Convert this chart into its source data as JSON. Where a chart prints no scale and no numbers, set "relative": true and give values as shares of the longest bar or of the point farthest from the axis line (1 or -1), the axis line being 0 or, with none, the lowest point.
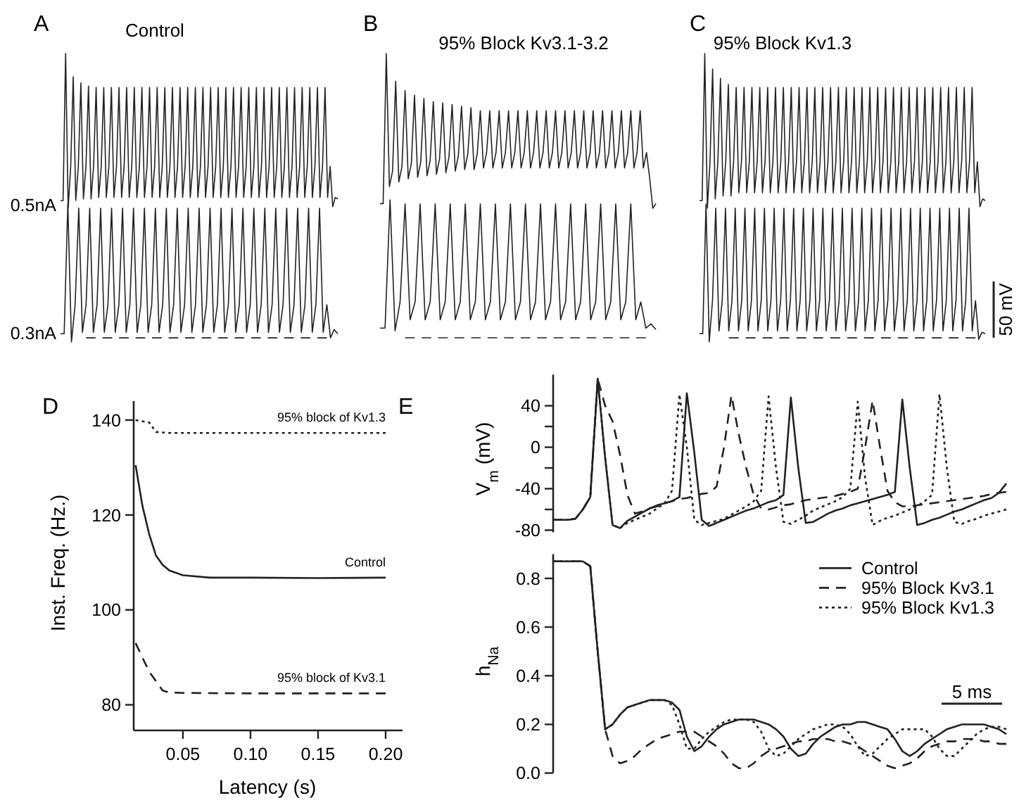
{
  "chart_data": [
    {
      "type": "line",
      "relative": true,
      "title": "Control",
      "ylabel": "0.5nA",
      "annotations": [
        "A"
      ],
      "categories": [
        null,
        null,
        null,
        null,
        null,
        null,
        null,
        null,
        null,
        null,
        null,
        null,
        null,
        null,
        null,
        null,
        null,
        null,
        null,
        null,
        null,
        null,
        null,
        null,
        null,
        null,
        null,
        null,
        null,
        null,
        null,
        null,
        null,
        null,
        null,
        null,
        null,
        null,
        null,
        null,
        null,
        null,
        null,
        null,
        null,
        null,
        null,
        null,
        null,
        null,
        null,
        null,
        null,
        null,
        null,
        null,
        null,
        null,
        null,
        null,
        null,
        null,
        null,
        null,
        null,
        null,
        null,
        null,
        null,
        null,
        null,
        null,
        null,
        null,
        null,
        null,
        null,
        null,
        null,
        null,
        null,
        null,
        null,
        null,
        null,
        null,
        null,
        null,
        null,
        null,
        null,
        null,
        null,
        null,
        null,
        null,
        null,
        null,
        null,
        null,
        null,
        null,
        null,
        null,
        null,
        null,
        null,
        null,
        null,
        null
      ],
      "series": [
        {
          "color": "#222222",
          "values": [
            0.05,
            0.05,
            1,
            0,
            0.27,
            0.85,
            0.05,
            0.27,
            0.81,
            0.06,
            0.27,
            0.79,
            0.06,
            0.27,
            0.78,
            0.07,
            0.27,
            0.78,
            0.07,
            0.27,
            0.78,
            0.07,
            0.27,
            0.78,
            0.07,
            0.27,
            0.78,
            0.07,
            0.27,
            0.78,
            0.07,
            0.27,
            0.78,
            0.07,
            0.27,
            0.78,
            0.07,
            0.27,
            0.78,
            0.07,
            0.27,
            0.78,
            0.07,
            0.27,
            0.78,
            0.07,
            0.27,
            0.78,
            0.07,
            0.27,
            0.78,
            0.07,
            0.27,
            0.78,
            0.07,
            0.27,
            0.78,
            0.07,
            0.27,
            0.78,
            0.07,
            0.27,
            0.78,
            0.07,
            0.27,
            0.78,
            0.07,
            0.27,
            0.78,
            0.07,
            0.27,
            0.78,
            0.07,
            0.27,
            0.78,
            0.07,
            0.27,
            0.78,
            0.07,
            0.27,
            0.78,
            0.07,
            0.27,
            0.78,
            0.07,
            0.27,
            0.78,
            0.07,
            0.27,
            0.78,
            0.07,
            0.27,
            0.78,
            0.07,
            0.27,
            0.78,
            0.07,
            0.27,
            0.78,
            0.07,
            0.27,
            0.78,
            0.07,
            0.27,
            0.78,
            0.07,
            0.27,
            0.01,
            0.07,
            0.06
          ]
        }
      ]
    },
    {
      "type": "line",
      "relative": true,
      "ylabel": "0.3nA",
      "categories": [
        null,
        null,
        null,
        null,
        null,
        null,
        null,
        null,
        null,
        null,
        null,
        null,
        null,
        null,
        null,
        null,
        null,
        null,
        null,
        null,
        null,
        null,
        null,
        null,
        null,
        null,
        null,
        null,
        null,
        null,
        null,
        null,
        null,
        null,
        null,
        null,
        null,
        null,
        null,
        null,
        null,
        null,
        null,
        null,
        null,
        null,
        null,
        null,
        null,
        null,
        null,
        null,
        null,
        null,
        null,
        null,
        null,
        null,
        null,
        null,
        null,
        null,
        null,
        null,
        null,
        null,
        null,
        null,
        null,
        null,
        null,
        null,
        null,
        null,
        null,
        null,
        null
      ],
      "series": [
        {
          "color": "#222222",
          "values": [
            0.06,
            0.06,
            1,
            0,
            0.27,
            0.97,
            0.07,
            0.27,
            0.97,
            0.07,
            0.27,
            0.97,
            0.07,
            0.27,
            0.97,
            0.07,
            0.27,
            0.97,
            0.07,
            0.27,
            0.97,
            0.07,
            0.27,
            0.97,
            0.07,
            0.27,
            0.97,
            0.07,
            0.27,
            0.97,
            0.07,
            0.27,
            0.97,
            0.07,
            0.27,
            0.97,
            0.07,
            0.27,
            0.97,
            0.07,
            0.27,
            0.97,
            0.07,
            0.27,
            0.97,
            0.07,
            0.27,
            0.97,
            0.07,
            0.27,
            0.97,
            0.07,
            0.27,
            0.97,
            0.07,
            0.27,
            0.97,
            0.07,
            0.27,
            0.97,
            0.07,
            0.27,
            0.97,
            0.07,
            0.27,
            0.97,
            0.07,
            0.27,
            0.97,
            0.07,
            0.27,
            0.97,
            0.07,
            0.27,
            0.03,
            0.09,
            0.06
          ]
        },
        {
          "color": "#222222",
          "line_style": "dashed",
          "values": [
            null,
            null,
            null,
            null,
            null,
            null,
            null,
            0.03,
            0.03,
            0.03,
            0.03,
            0.03,
            0.03,
            0.03,
            0.03,
            0.03,
            0.03,
            0.03,
            0.03,
            0.03,
            0.03,
            0.03,
            0.03,
            0.03,
            0.03,
            0.03,
            0.03,
            0.03,
            0.03,
            0.03,
            0.03,
            0.03,
            0.03,
            0.03,
            0.03,
            0.03,
            0.03,
            0.03,
            0.03,
            0.03,
            0.03,
            0.03,
            0.03,
            0.03,
            0.03,
            0.03,
            0.03,
            0.03,
            0.03,
            0.03,
            0.03,
            0.03,
            0.03,
            0.03,
            0.03,
            0.03,
            0.03,
            0.03,
            0.03,
            0.03,
            0.03,
            0.03,
            0.03,
            0.03,
            0.03,
            0.03,
            0.03,
            0.03,
            0.03,
            0.03,
            0.03,
            0.03,
            0.03,
            0.03,
            null,
            null,
            null
          ]
        }
      ]
    },
    {
      "type": "line",
      "relative": true,
      "title": "95% Block Kv3.1-3.2",
      "annotations": [
        "B"
      ],
      "categories": [
        null,
        null,
        null,
        null,
        null,
        null,
        null,
        null,
        null,
        null,
        null,
        null,
        null,
        null,
        null,
        null,
        null,
        null,
        null,
        null,
        null,
        null,
        null,
        null,
        null,
        null,
        null,
        null,
        null,
        null,
        null,
        null,
        null,
        null,
        null,
        null,
        null,
        null,
        null,
        null,
        null,
        null,
        null,
        null,
        null,
        null,
        null,
        null,
        null,
        null,
        null,
        null,
        null,
        null,
        null,
        null,
        null,
        null,
        null,
        null,
        null,
        null,
        null,
        null,
        null,
        null,
        null,
        null,
        null,
        null,
        null,
        null,
        null,
        null,
        null,
        null,
        null,
        null,
        null,
        null,
        null,
        null,
        null,
        null,
        null,
        null,
        null,
        null,
        null
      ],
      "series": [
        {
          "color": "#222222",
          "values": [
            0.03,
            0.03,
            1,
            0.14,
            0.24,
            0.82,
            0.17,
            0.27,
            0.76,
            0.19,
            0.29,
            0.73,
            0.2,
            0.3,
            0.71,
            0.21,
            0.31,
            0.69,
            0.22,
            0.32,
            0.68,
            0.23,
            0.33,
            0.67,
            0.24,
            0.34,
            0.66,
            0.25,
            0.35,
            0.65,
            0.25,
            0.35,
            0.63,
            0.26,
            0.36,
            0.63,
            0.26,
            0.36,
            0.63,
            0.26,
            0.36,
            0.63,
            0.26,
            0.36,
            0.63,
            0.26,
            0.36,
            0.63,
            0.26,
            0.36,
            0.63,
            0.26,
            0.36,
            0.63,
            0.26,
            0.36,
            0.63,
            0.26,
            0.36,
            0.63,
            0.26,
            0.36,
            0.63,
            0.26,
            0.36,
            0.63,
            0.26,
            0.36,
            0.63,
            0.26,
            0.36,
            0.63,
            0.26,
            0.36,
            0.63,
            0.26,
            0.36,
            0.63,
            0.26,
            0.36,
            0.63,
            0.26,
            0.36,
            0.63,
            0.26,
            0.36,
            0.2,
            0,
            0.03
          ]
        }
      ]
    },
    {
      "type": "line",
      "relative": true,
      "categories": [
        null,
        null,
        null,
        null,
        null,
        null,
        null,
        null,
        null,
        null,
        null,
        null,
        null,
        null,
        null,
        null,
        null,
        null,
        null,
        null,
        null,
        null,
        null,
        null,
        null,
        null,
        null,
        null,
        null,
        null,
        null,
        null,
        null,
        null,
        null,
        null,
        null,
        null,
        null,
        null,
        null,
        null,
        null,
        null,
        null,
        null,
        null,
        null,
        null,
        null,
        null,
        null,
        null,
        null,
        null,
        null
      ],
      "series": [
        {
          "color": "#222222",
          "values": [
            0.07,
            0.07,
            1,
            0.05,
            0.26,
            0.97,
            0.13,
            0.26,
            0.97,
            0.13,
            0.26,
            0.97,
            0.13,
            0.26,
            0.97,
            0.13,
            0.26,
            0.97,
            0.13,
            0.26,
            0.97,
            0.13,
            0.26,
            0.97,
            0.13,
            0.26,
            0.97,
            0.13,
            0.26,
            0.97,
            0.13,
            0.26,
            0.97,
            0.13,
            0.26,
            0.97,
            0.13,
            0.26,
            0.97,
            0.13,
            0.26,
            0.97,
            0.13,
            0.26,
            0.97,
            0.13,
            0.26,
            0.97,
            0.13,
            0.26,
            0.97,
            0.13,
            0.26,
            0.07,
            0.1,
            0.06
          ]
        },
        {
          "color": "#222222",
          "line_style": "dashed",
          "values": [
            null,
            null,
            null,
            null,
            null,
            0,
            0,
            0,
            0,
            0,
            0,
            0,
            0,
            0,
            0,
            0,
            0,
            0,
            0,
            0,
            0,
            0,
            0,
            0,
            0,
            0,
            0,
            0,
            0,
            0,
            0,
            0,
            0,
            0,
            0,
            0,
            0,
            0,
            0,
            0,
            0,
            0,
            0,
            0,
            0,
            0,
            0,
            0,
            0,
            0,
            0,
            0,
            0,
            0,
            null,
            null
          ]
        }
      ]
    },
    {
      "type": "line",
      "relative": true,
      "title": "95% Block Kv1.3",
      "annotations": [
        "C"
      ],
      "categories": [
        null,
        null,
        null,
        null,
        null,
        null,
        null,
        null,
        null,
        null,
        null,
        null,
        null,
        null,
        null,
        null,
        null,
        null,
        null,
        null,
        null,
        null,
        null,
        null,
        null,
        null,
        null,
        null,
        null,
        null,
        null,
        null,
        null,
        null,
        null,
        null,
        null,
        null,
        null,
        null,
        null,
        null,
        null,
        null,
        null,
        null,
        null,
        null,
        null,
        null,
        null,
        null,
        null,
        null,
        null,
        null,
        null,
        null,
        null,
        null,
        null,
        null,
        null,
        null,
        null,
        null,
        null,
        null,
        null,
        null,
        null,
        null,
        null,
        null,
        null,
        null,
        null,
        null,
        null,
        null,
        null,
        null,
        null,
        null,
        null,
        null,
        null,
        null,
        null,
        null,
        null,
        null,
        null,
        null,
        null,
        null,
        null,
        null,
        null,
        null,
        null,
        null,
        null,
        null,
        null,
        null,
        null,
        null,
        null,
        null
      ],
      "series": [
        {
          "color": "#222222",
          "values": [
            0.05,
            0.05,
            1,
            0,
            0.3,
            0.9,
            0.06,
            0.3,
            0.84,
            0.08,
            0.3,
            0.8,
            0.08,
            0.3,
            0.78,
            0.1,
            0.3,
            0.78,
            0.1,
            0.3,
            0.78,
            0.1,
            0.3,
            0.78,
            0.1,
            0.3,
            0.78,
            0.1,
            0.3,
            0.78,
            0.1,
            0.3,
            0.78,
            0.1,
            0.3,
            0.78,
            0.1,
            0.3,
            0.78,
            0.1,
            0.3,
            0.78,
            0.1,
            0.3,
            0.78,
            0.1,
            0.3,
            0.78,
            0.1,
            0.3,
            0.78,
            0.1,
            0.3,
            0.78,
            0.1,
            0.3,
            0.78,
            0.1,
            0.3,
            0.78,
            0.1,
            0.3,
            0.78,
            0.1,
            0.3,
            0.78,
            0.1,
            0.3,
            0.78,
            0.1,
            0.3,
            0.78,
            0.1,
            0.3,
            0.78,
            0.1,
            0.3,
            0.78,
            0.1,
            0.3,
            0.78,
            0.1,
            0.3,
            0.78,
            0.1,
            0.3,
            0.78,
            0.1,
            0.3,
            0.78,
            0.1,
            0.3,
            0.78,
            0.1,
            0.3,
            0.78,
            0.1,
            0.3,
            0.78,
            0.1,
            0.3,
            0.78,
            0.1,
            0.3,
            0.78,
            0.1,
            0.3,
            0.01,
            0.06,
            0.05
          ]
        }
      ]
    },
    {
      "type": "line",
      "relative": true,
      "annotations": [
        "50 mV"
      ],
      "categories": [
        null,
        null,
        null,
        null,
        null,
        null,
        null,
        null,
        null,
        null,
        null,
        null,
        null,
        null,
        null,
        null,
        null,
        null,
        null,
        null,
        null,
        null,
        null,
        null,
        null,
        null,
        null,
        null,
        null,
        null,
        null,
        null,
        null,
        null,
        null,
        null,
        null,
        null,
        null,
        null,
        null,
        null,
        null,
        null,
        null,
        null,
        null,
        null,
        null,
        null,
        null,
        null,
        null,
        null,
        null,
        null,
        null,
        null,
        null,
        null,
        null,
        null,
        null,
        null,
        null,
        null,
        null,
        null,
        null,
        null,
        null,
        null,
        null,
        null,
        null,
        null,
        null,
        null,
        null,
        null,
        null,
        null,
        null,
        null,
        null,
        null,
        null,
        null,
        null
      ],
      "series": [
        {
          "color": "#222222",
          "values": [
            0.06,
            0.06,
            1,
            0,
            0.3,
            0.97,
            0.08,
            0.3,
            0.97,
            0.08,
            0.3,
            0.97,
            0.08,
            0.3,
            0.97,
            0.08,
            0.3,
            0.97,
            0.08,
            0.3,
            0.97,
            0.08,
            0.3,
            0.97,
            0.08,
            0.3,
            0.97,
            0.08,
            0.3,
            0.97,
            0.08,
            0.3,
            0.97,
            0.08,
            0.3,
            0.97,
            0.08,
            0.3,
            0.97,
            0.08,
            0.3,
            0.97,
            0.08,
            0.3,
            0.97,
            0.08,
            0.3,
            0.97,
            0.08,
            0.3,
            0.97,
            0.08,
            0.3,
            0.97,
            0.08,
            0.3,
            0.97,
            0.08,
            0.3,
            0.97,
            0.08,
            0.3,
            0.97,
            0.08,
            0.3,
            0.97,
            0.08,
            0.3,
            0.97,
            0.08,
            0.3,
            0.97,
            0.08,
            0.3,
            0.97,
            0.08,
            0.3,
            0.97,
            0.08,
            0.3,
            0.97,
            0.08,
            0.3,
            0.97,
            0.08,
            0.3,
            0.02,
            0.07,
            0.06
          ]
        },
        {
          "color": "#222222",
          "line_style": "dashed",
          "values": [
            null,
            null,
            null,
            null,
            null,
            null,
            null,
            null,
            null,
            0.03,
            0.03,
            0.03,
            0.03,
            0.03,
            0.03,
            0.03,
            0.03,
            0.03,
            0.03,
            0.03,
            0.03,
            0.03,
            0.03,
            0.03,
            0.03,
            0.03,
            0.03,
            0.03,
            0.03,
            0.03,
            0.03,
            0.03,
            0.03,
            0.03,
            0.03,
            0.03,
            0.03,
            0.03,
            0.03,
            0.03,
            0.03,
            0.03,
            0.03,
            0.03,
            0.03,
            0.03,
            0.03,
            0.03,
            0.03,
            0.03,
            0.03,
            0.03,
            0.03,
            0.03,
            0.03,
            0.03,
            0.03,
            0.03,
            0.03,
            0.03,
            0.03,
            0.03,
            0.03,
            0.03,
            0.03,
            0.03,
            0.03,
            0.03,
            0.03,
            0.03,
            0.03,
            0.03,
            0.03,
            0.03,
            0.03,
            0.03,
            0.03,
            0.03,
            0.03,
            0.03,
            0.03,
            0.03,
            0.03,
            0.03,
            0.03,
            0.03,
            null,
            null,
            null
          ]
        }
      ]
    },
    {
      "type": "line",
      "annotations": [
        "D"
      ],
      "xlabel": "Latency (s)",
      "ylabel": "Inst. Freq. (Hz.)",
      "xlim": [
        0.0136,
        0.2125
      ],
      "ylim": [
        74.6,
        144
      ],
      "xticks": [
        0.05,
        {
          "value": 0.1,
          "label": "0.10"
        },
        0.15,
        {
          "value": 0.2,
          "label": "0.20"
        }
      ],
      "yticks": [
        80,
        100,
        120,
        140
      ],
      "series": [
        {
          "name": "95% block of Kv1.3",
          "color": "#222222",
          "line_style": "dotted",
          "x": [
            0.015,
            0.025,
            0.03,
            0.04,
            0.1,
            0.2
          ],
          "values": [
            140,
            139.5,
            137.5,
            137.3,
            137.3,
            137.3
          ]
        },
        {
          "name": "Control",
          "color": "#222222",
          "x": [
            0.015,
            0.02,
            0.025,
            0.03,
            0.035,
            0.04,
            0.05,
            0.07,
            0.1,
            0.15,
            0.2
          ],
          "values": [
            130.5,
            122,
            116,
            111.5,
            109.5,
            108.3,
            107.3,
            106.8,
            106.8,
            106.7,
            106.8
          ]
        },
        {
          "name": "95% block of Kv3.1",
          "color": "#222222",
          "line_style": "dashed",
          "x": [
            0.015,
            0.02,
            0.025,
            0.03,
            0.035,
            0.04,
            0.05,
            0.1,
            0.2
          ],
          "values": [
            93,
            90,
            87,
            85,
            83,
            82.6,
            82.5,
            82.4,
            82.4
          ]
        }
      ]
    },
    {
      "type": "line",
      "annotations": [
        "E"
      ],
      "ylabel": "V$_{m}$ (mV)",
      "ylim": [
        -82,
        70
      ],
      "tick_labels": "y",
      "categories": [
        null,
        null,
        null,
        null,
        null,
        null,
        null,
        null,
        null,
        null,
        null,
        null,
        null,
        null,
        null,
        null,
        null,
        null,
        null,
        null,
        null,
        null,
        null,
        null,
        null,
        null,
        null,
        null,
        null,
        null,
        null,
        null,
        null,
        null,
        null,
        null,
        null,
        null,
        null,
        null,
        null,
        null,
        null,
        null,
        null,
        null,
        null,
        null,
        null,
        null,
        null,
        null,
        null,
        null,
        null,
        null,
        null,
        null,
        null,
        null,
        null,
        null
      ],
      "yticks": [
        -80,
        {
          "value": -60,
          "label": null
        },
        -40,
        {
          "value": -20,
          "label": null
        },
        0,
        {
          "value": 20,
          "label": null
        },
        40
      ],
      "series": [
        {
          "color": "#222222",
          "values": [
            -70,
            -70,
            -70,
            -69,
            -60,
            -48,
            66,
            -10,
            -75,
            -78,
            -71,
            -67,
            -63,
            -59,
            -56,
            -54,
            -52,
            -48,
            52,
            -5,
            -70,
            -76,
            -73,
            -70,
            -67,
            -64,
            -61,
            -59,
            -56,
            -53,
            -51,
            -46,
            48,
            -20,
            -73,
            -72,
            -68,
            -64,
            -61,
            -59,
            -56,
            -54,
            -52,
            -50,
            -48,
            -46,
            -43,
            46,
            -20,
            -75,
            -73,
            -70,
            -68,
            -65,
            -62,
            -60,
            -57,
            -54,
            -51,
            -49,
            -44,
            -35
          ]
        },
        {
          "color": "#222222",
          "line_style": "dashed",
          "values": [
            -70,
            -70,
            -70,
            -69,
            -60,
            -48,
            66,
            40,
            25,
            -7,
            -46,
            -64,
            -62,
            -59,
            -57,
            -54,
            -52,
            -50,
            -49,
            -47,
            -45,
            -44,
            -38,
            0,
            50,
            12,
            -20,
            -46,
            -59,
            -60,
            -58,
            -56,
            -55,
            -53,
            -51,
            -50,
            -49,
            -48,
            -47,
            -45,
            -43,
            -40,
            0,
            45,
            0,
            -42,
            -53,
            -57,
            -57,
            -56,
            -55,
            -54,
            -53,
            -52,
            -51,
            -50,
            -49,
            -48,
            -47,
            -45,
            -44,
            -43
          ]
        },
        {
          "color": "#222222",
          "line_style": "dotted",
          "values": [
            -70,
            -70,
            -70,
            -69,
            -60,
            -48,
            66,
            -10,
            -75,
            -78,
            -73,
            -70,
            -67,
            -64,
            -59,
            -54,
            -42,
            51,
            0,
            -70,
            -75,
            -73,
            -71,
            -69,
            -65,
            -61,
            -57,
            -52,
            -42,
            49,
            -20,
            -72,
            -74,
            -70,
            -66,
            -61,
            -58,
            -55,
            -52,
            -48,
            -40,
            44,
            -30,
            -75,
            -71,
            -68,
            -66,
            -63,
            -60,
            -57,
            -52,
            -46,
            51,
            -20,
            -72,
            -74,
            -71,
            -69,
            -66,
            -64,
            -62,
            -60
          ]
        }
      ]
    },
    {
      "type": "line",
      "annotations": [
        "5 ms"
      ],
      "ylabel": "h$_{Na}$",
      "ylim": [
        0,
        0.9
      ],
      "tick_labels": "y",
      "legend": "top right",
      "categories": [
        null,
        null,
        null,
        null,
        null,
        null,
        null,
        null,
        null,
        null,
        null,
        null,
        null,
        null,
        null,
        null,
        null,
        null,
        null,
        null,
        null,
        null,
        null,
        null,
        null,
        null,
        null,
        null,
        null,
        null,
        null,
        null,
        null,
        null,
        null,
        null,
        null,
        null,
        null,
        null,
        null,
        null,
        null,
        null,
        null,
        null,
        null,
        null,
        null,
        null,
        null,
        null,
        null,
        null,
        null,
        null,
        null,
        null,
        null,
        null,
        null,
        null
      ],
      "yticks": [
        {
          "value": 0,
          "label": "0.0"
        },
        0.2,
        0.4,
        0.6,
        0.8
      ],
      "series": [
        {
          "name": "Control",
          "color": "#222222",
          "values": [
            0.87,
            0.87,
            0.87,
            0.87,
            0.87,
            0.85,
            0.5,
            0.18,
            0.2,
            0.24,
            0.27,
            0.28,
            0.29,
            0.3,
            0.3,
            0.3,
            0.29,
            0.26,
            0.15,
            0.09,
            0.11,
            0.15,
            0.18,
            0.2,
            0.21,
            0.22,
            0.22,
            0.22,
            0.21,
            0.2,
            0.18,
            0.15,
            0.1,
            0.07,
            0.08,
            0.12,
            0.15,
            0.17,
            0.19,
            0.2,
            0.2,
            0.21,
            0.21,
            0.2,
            0.19,
            0.18,
            0.14,
            0.09,
            0.07,
            0.09,
            0.12,
            0.14,
            0.16,
            0.18,
            0.19,
            0.2,
            0.2,
            0.2,
            0.2,
            0.19,
            0.18,
            0.16
          ]
        },
        {
          "name": "95% Block Kv3.1",
          "color": "#222222",
          "line_style": "dashed",
          "values": [
            0.87,
            0.87,
            0.87,
            0.87,
            0.87,
            0.85,
            0.5,
            0.18,
            0.07,
            0.04,
            0.05,
            0.07,
            0.1,
            0.12,
            0.14,
            0.15,
            0.16,
            0.17,
            0.17,
            0.17,
            0.15,
            0.13,
            0.11,
            0.08,
            0.04,
            0.02,
            0.02,
            0.04,
            0.07,
            0.09,
            0.1,
            0.11,
            0.12,
            0.13,
            0.13,
            0.14,
            0.14,
            0.14,
            0.13,
            0.13,
            0.12,
            0.11,
            0.09,
            0.07,
            0.05,
            0.03,
            0.02,
            0.03,
            0.04,
            0.06,
            0.09,
            0.11,
            0.12,
            0.13,
            0.13,
            0.14,
            0.14,
            0.14,
            0.13,
            0.13,
            0.12,
            0.12
          ]
        },
        {
          "name": "95% Block Kv1.3",
          "color": "#222222",
          "line_style": "dotted",
          "values": [
            0.87,
            0.87,
            0.87,
            0.87,
            0.87,
            0.85,
            0.5,
            0.18,
            0.2,
            0.24,
            0.27,
            0.28,
            0.29,
            0.3,
            0.3,
            0.3,
            0.28,
            0.2,
            0.1,
            0.1,
            0.14,
            0.17,
            0.19,
            0.21,
            0.22,
            0.22,
            0.22,
            0.21,
            0.17,
            0.1,
            0.07,
            0.08,
            0.11,
            0.14,
            0.16,
            0.18,
            0.19,
            0.2,
            0.2,
            0.19,
            0.16,
            0.11,
            0.07,
            0.08,
            0.11,
            0.14,
            0.16,
            0.18,
            0.18,
            0.18,
            0.18,
            0.15,
            0.1,
            0.07,
            0.07,
            0.1,
            0.13,
            0.16,
            0.18,
            0.19,
            0.19,
            0.18
          ]
        }
      ]
    }
  ]
}
